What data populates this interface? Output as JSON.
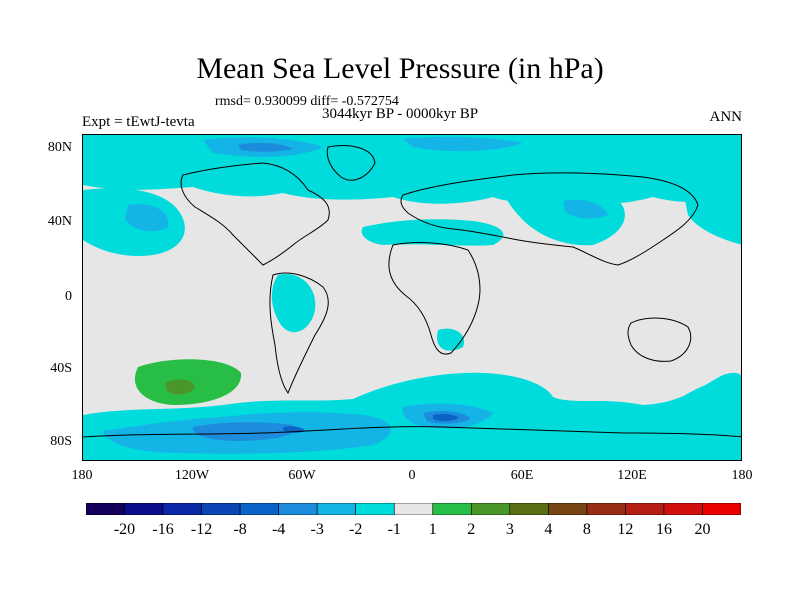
{
  "title": "Mean Sea Level Pressure (in hPa)",
  "stats": "rmsd= 0.930099 diff= -0.572754",
  "period": "3044kyr BP - 0000kyr BP",
  "experiment": "Expt = tEwtJ-tevta",
  "season": "ANN",
  "y_axis_labels": [
    "80N",
    "40N",
    "0",
    "40S",
    "80S"
  ],
  "x_axis_labels": [
    "180",
    "120W",
    "60W",
    "0",
    "60E",
    "120E",
    "180"
  ],
  "colorbar": {
    "labels": [
      "-20",
      "-16",
      "-12",
      "-8",
      "-4",
      "-3",
      "-2",
      "-1",
      "1",
      "2",
      "3",
      "4",
      "8",
      "12",
      "16",
      "20"
    ],
    "colors": [
      "#14005a",
      "#0c0c8c",
      "#0a28a8",
      "#0a46b4",
      "#0a64c8",
      "#1e8cdc",
      "#14b4e6",
      "#00dcdc",
      "#e6e6e6",
      "#28be46",
      "#4b9628",
      "#5a6e14",
      "#784614",
      "#962d14",
      "#b41e14",
      "#d20f0f",
      "#eb0000"
    ]
  },
  "map_colors": {
    "neutral": "#e6e6e6",
    "neg1": "#00dcdc",
    "neg2": "#14b4e6",
    "neg3": "#1e8cdc",
    "neg4": "#0a64c8",
    "neg8": "#0a46b4",
    "pos1": "#28be46",
    "pos2": "#4b9628"
  }
}
